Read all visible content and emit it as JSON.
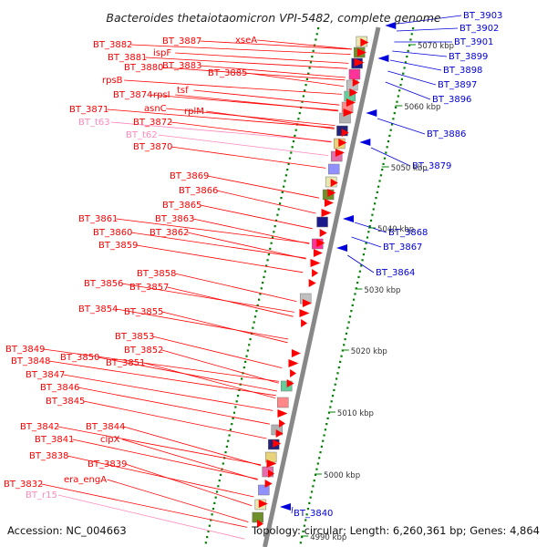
{
  "title": "Bacteroides thetaiotaomicron VPI-5482, complete genome",
  "accession": "Accession: NC_004663",
  "topology": "Topology: circular; Length: 6,260,361 bp; Genes: 4,864",
  "ticks": [
    "5070 kbp",
    "5060 kbp",
    "5050 kbp",
    "5040 kbp",
    "5030 kbp",
    "5020 kbp",
    "5010 kbp",
    "5000 kbp",
    "4990 kbp"
  ],
  "colors": {
    "forward": "#ff0000",
    "reverse": "#0000dd",
    "rna": "#ff88bb",
    "backbone": "#888888",
    "tick": "#008000"
  },
  "left_labels": [
    {
      "text": "BT_3887",
      "kind": "gene"
    },
    {
      "text": "xseA",
      "kind": "gene"
    },
    {
      "text": "BT_3882",
      "kind": "gene"
    },
    {
      "text": "ispF",
      "kind": "gene"
    },
    {
      "text": "BT_3881",
      "kind": "gene"
    },
    {
      "text": "BT_3883",
      "kind": "gene"
    },
    {
      "text": "BT_3880",
      "kind": "gene"
    },
    {
      "text": "BT_3885",
      "kind": "gene"
    },
    {
      "text": "rpsB",
      "kind": "gene"
    },
    {
      "text": "tsf",
      "kind": "gene"
    },
    {
      "text": "BT_3874",
      "kind": "gene"
    },
    {
      "text": "rpsI",
      "kind": "gene"
    },
    {
      "text": "asnC",
      "kind": "gene"
    },
    {
      "text": "rplM",
      "kind": "gene"
    },
    {
      "text": "BT_3871",
      "kind": "gene"
    },
    {
      "text": "BT_t63",
      "kind": "rna"
    },
    {
      "text": "BT_3872",
      "kind": "gene"
    },
    {
      "text": "BT_t62",
      "kind": "rna"
    },
    {
      "text": "BT_3870",
      "kind": "gene"
    },
    {
      "text": "BT_3869",
      "kind": "gene"
    },
    {
      "text": "BT_3866",
      "kind": "gene"
    },
    {
      "text": "BT_3865",
      "kind": "gene"
    },
    {
      "text": "BT_3861",
      "kind": "gene"
    },
    {
      "text": "BT_3863",
      "kind": "gene"
    },
    {
      "text": "BT_3860",
      "kind": "gene"
    },
    {
      "text": "BT_3862",
      "kind": "gene"
    },
    {
      "text": "BT_3859",
      "kind": "gene"
    },
    {
      "text": "BT_3858",
      "kind": "gene"
    },
    {
      "text": "BT_3856",
      "kind": "gene"
    },
    {
      "text": "BT_3857",
      "kind": "gene"
    },
    {
      "text": "BT_3854",
      "kind": "gene"
    },
    {
      "text": "BT_3855",
      "kind": "gene"
    },
    {
      "text": "BT_3853",
      "kind": "gene"
    },
    {
      "text": "BT_3849",
      "kind": "gene"
    },
    {
      "text": "BT_3852",
      "kind": "gene"
    },
    {
      "text": "BT_3850",
      "kind": "gene"
    },
    {
      "text": "BT_3848",
      "kind": "gene"
    },
    {
      "text": "BT_3851",
      "kind": "gene"
    },
    {
      "text": "BT_3847",
      "kind": "gene"
    },
    {
      "text": "BT_3846",
      "kind": "gene"
    },
    {
      "text": "BT_3845",
      "kind": "gene"
    },
    {
      "text": "BT_3842",
      "kind": "gene"
    },
    {
      "text": "BT_3844",
      "kind": "gene"
    },
    {
      "text": "BT_3841",
      "kind": "gene"
    },
    {
      "text": "clpX",
      "kind": "gene"
    },
    {
      "text": "BT_3838",
      "kind": "gene"
    },
    {
      "text": "BT_3839",
      "kind": "gene"
    },
    {
      "text": "era_engA",
      "kind": "gene"
    },
    {
      "text": "BT_3832",
      "kind": "gene"
    },
    {
      "text": "BT_r15",
      "kind": "rna"
    }
  ],
  "right_labels": [
    "BT_3903",
    "BT_3902",
    "BT_3901",
    "BT_3899",
    "BT_3898",
    "BT_3897",
    "BT_3896",
    "BT_3886",
    "BT_3879",
    "BT_3868",
    "BT_3867",
    "BT_3864",
    "BT_3840"
  ]
}
